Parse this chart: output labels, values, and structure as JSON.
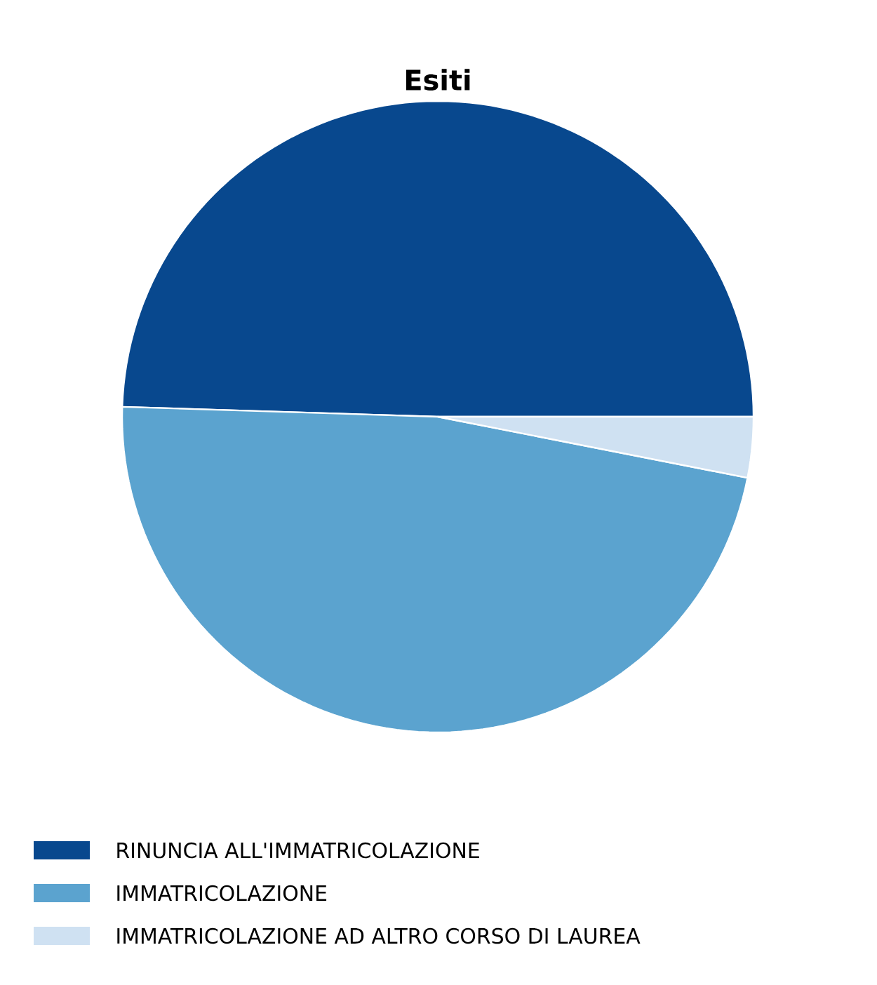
{
  "chart_data": {
    "type": "pie",
    "title": "Esiti",
    "categories": [
      "RINUNCIA ALL'IMMATRICOLAZIONE",
      "IMMATRICOLAZIONE",
      "IMMATRICOLAZIONE AD ALTRO CORSO DI LAUREA"
    ],
    "values": [
      49.5,
      47.4,
      3.1
    ],
    "colors": [
      "#08488e",
      "#5ba3cf",
      "#cfe1f2"
    ],
    "legend": "bottom"
  }
}
